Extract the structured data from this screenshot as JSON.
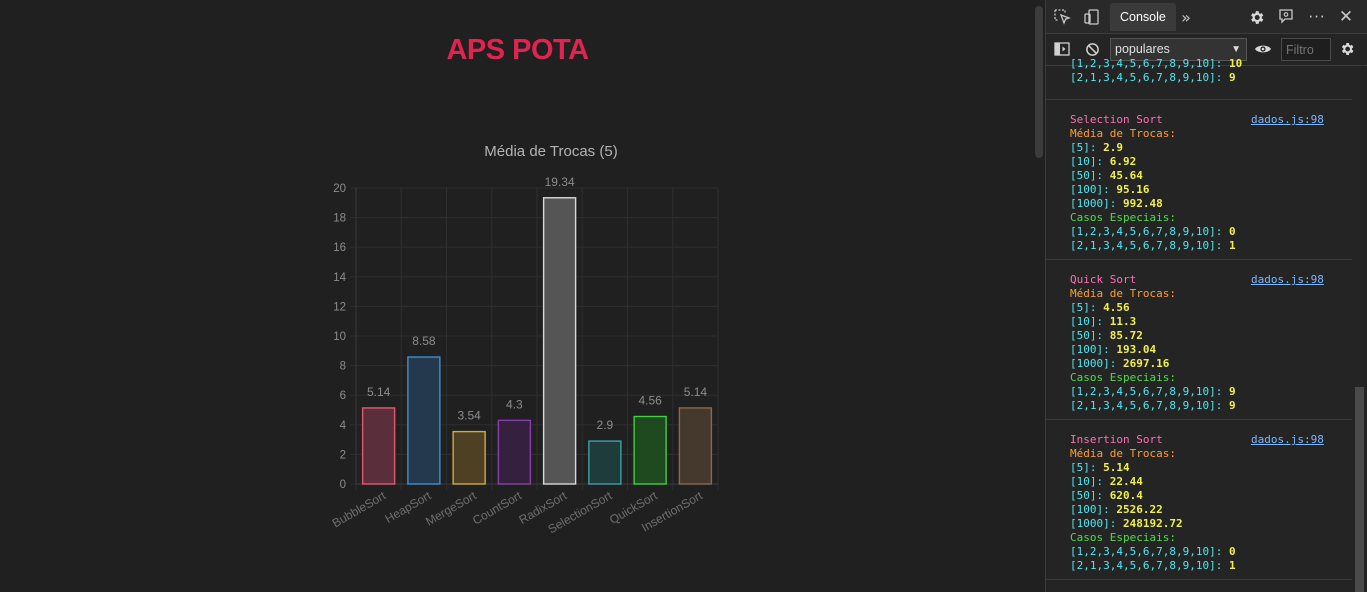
{
  "page": {
    "title": "APS POTA"
  },
  "chart_data": {
    "type": "bar",
    "title": "Média de Trocas (5)",
    "categories": [
      "BubbleSort",
      "HeapSort",
      "MergeSort",
      "CountSort",
      "RadixSort",
      "SelectionSort",
      "QuickSort",
      "InsertionSort"
    ],
    "values": [
      5.14,
      8.58,
      3.54,
      4.3,
      19.34,
      2.9,
      4.56,
      5.14
    ],
    "value_labels": [
      "5.14",
      "8.58",
      "3.54",
      "4.3",
      "19.34",
      "2.9",
      "4.56",
      "5.14"
    ],
    "ylim": [
      0,
      20
    ],
    "yticks": [
      "0",
      "2",
      "4",
      "6",
      "8",
      "10",
      "12",
      "14",
      "16",
      "18",
      "20"
    ],
    "grid": true,
    "colors": {
      "fill": [
        "#5a2e3a",
        "#24394e",
        "#4d4023",
        "#36203f",
        "#555555",
        "#1f3c3d",
        "#1f4a1f",
        "#45382c"
      ],
      "stroke": [
        "#e05a73",
        "#3e8fd0",
        "#d5a845",
        "#8a3fa8",
        "#d8d8d8",
        "#3ea0a3",
        "#3fd03f",
        "#8a6a4a"
      ]
    }
  },
  "devtools": {
    "tabs": [
      "Console"
    ],
    "more_tabs_icon": "chevron-double-right-icon",
    "context": "populares",
    "filter_placeholder": "Filtro",
    "entries": [
      {
        "title": "",
        "source": "",
        "lines": [
          {
            "k": "[1,2,3,4,5,6,7,8,9,10]: ",
            "v": "10"
          },
          {
            "k": "[2,1,3,4,5,6,7,8,9,10]: ",
            "v": "9"
          }
        ]
      },
      {
        "title": "Selection Sort",
        "source": "dados.js:98",
        "media_label": "Média de Trocas:",
        "media": [
          {
            "k": "[5]: ",
            "v": "2.9"
          },
          {
            "k": "[10]: ",
            "v": "6.92"
          },
          {
            "k": "[50]: ",
            "v": "45.64"
          },
          {
            "k": "[100]: ",
            "v": "95.16"
          },
          {
            "k": "[1000]: ",
            "v": "992.48"
          }
        ],
        "casos_label": "Casos Especiais:",
        "casos": [
          {
            "k": "[1,2,3,4,5,6,7,8,9,10]: ",
            "v": "0"
          },
          {
            "k": "[2,1,3,4,5,6,7,8,9,10]: ",
            "v": "1"
          }
        ]
      },
      {
        "title": "Quick Sort",
        "source": "dados.js:98",
        "media_label": "Média de Trocas:",
        "media": [
          {
            "k": "[5]: ",
            "v": "4.56"
          },
          {
            "k": "[10]: ",
            "v": "11.3"
          },
          {
            "k": "[50]: ",
            "v": "85.72"
          },
          {
            "k": "[100]: ",
            "v": "193.04"
          },
          {
            "k": "[1000]: ",
            "v": "2697.16"
          }
        ],
        "casos_label": "Casos Especiais:",
        "casos": [
          {
            "k": "[1,2,3,4,5,6,7,8,9,10]: ",
            "v": "9"
          },
          {
            "k": "[2,1,3,4,5,6,7,8,9,10]: ",
            "v": "9"
          }
        ]
      },
      {
        "title": "Insertion Sort",
        "source": "dados.js:98",
        "media_label": "Média de Trocas:",
        "media": [
          {
            "k": "[5]: ",
            "v": "5.14"
          },
          {
            "k": "[10]: ",
            "v": "22.44"
          },
          {
            "k": "[50]: ",
            "v": "620.4"
          },
          {
            "k": "[100]: ",
            "v": "2526.22"
          },
          {
            "k": "[1000]: ",
            "v": "248192.72"
          }
        ],
        "casos_label": "Casos Especiais:",
        "casos": [
          {
            "k": "[1,2,3,4,5,6,7,8,9,10]: ",
            "v": "0"
          },
          {
            "k": "[2,1,3,4,5,6,7,8,9,10]: ",
            "v": "1"
          }
        ]
      }
    ]
  }
}
